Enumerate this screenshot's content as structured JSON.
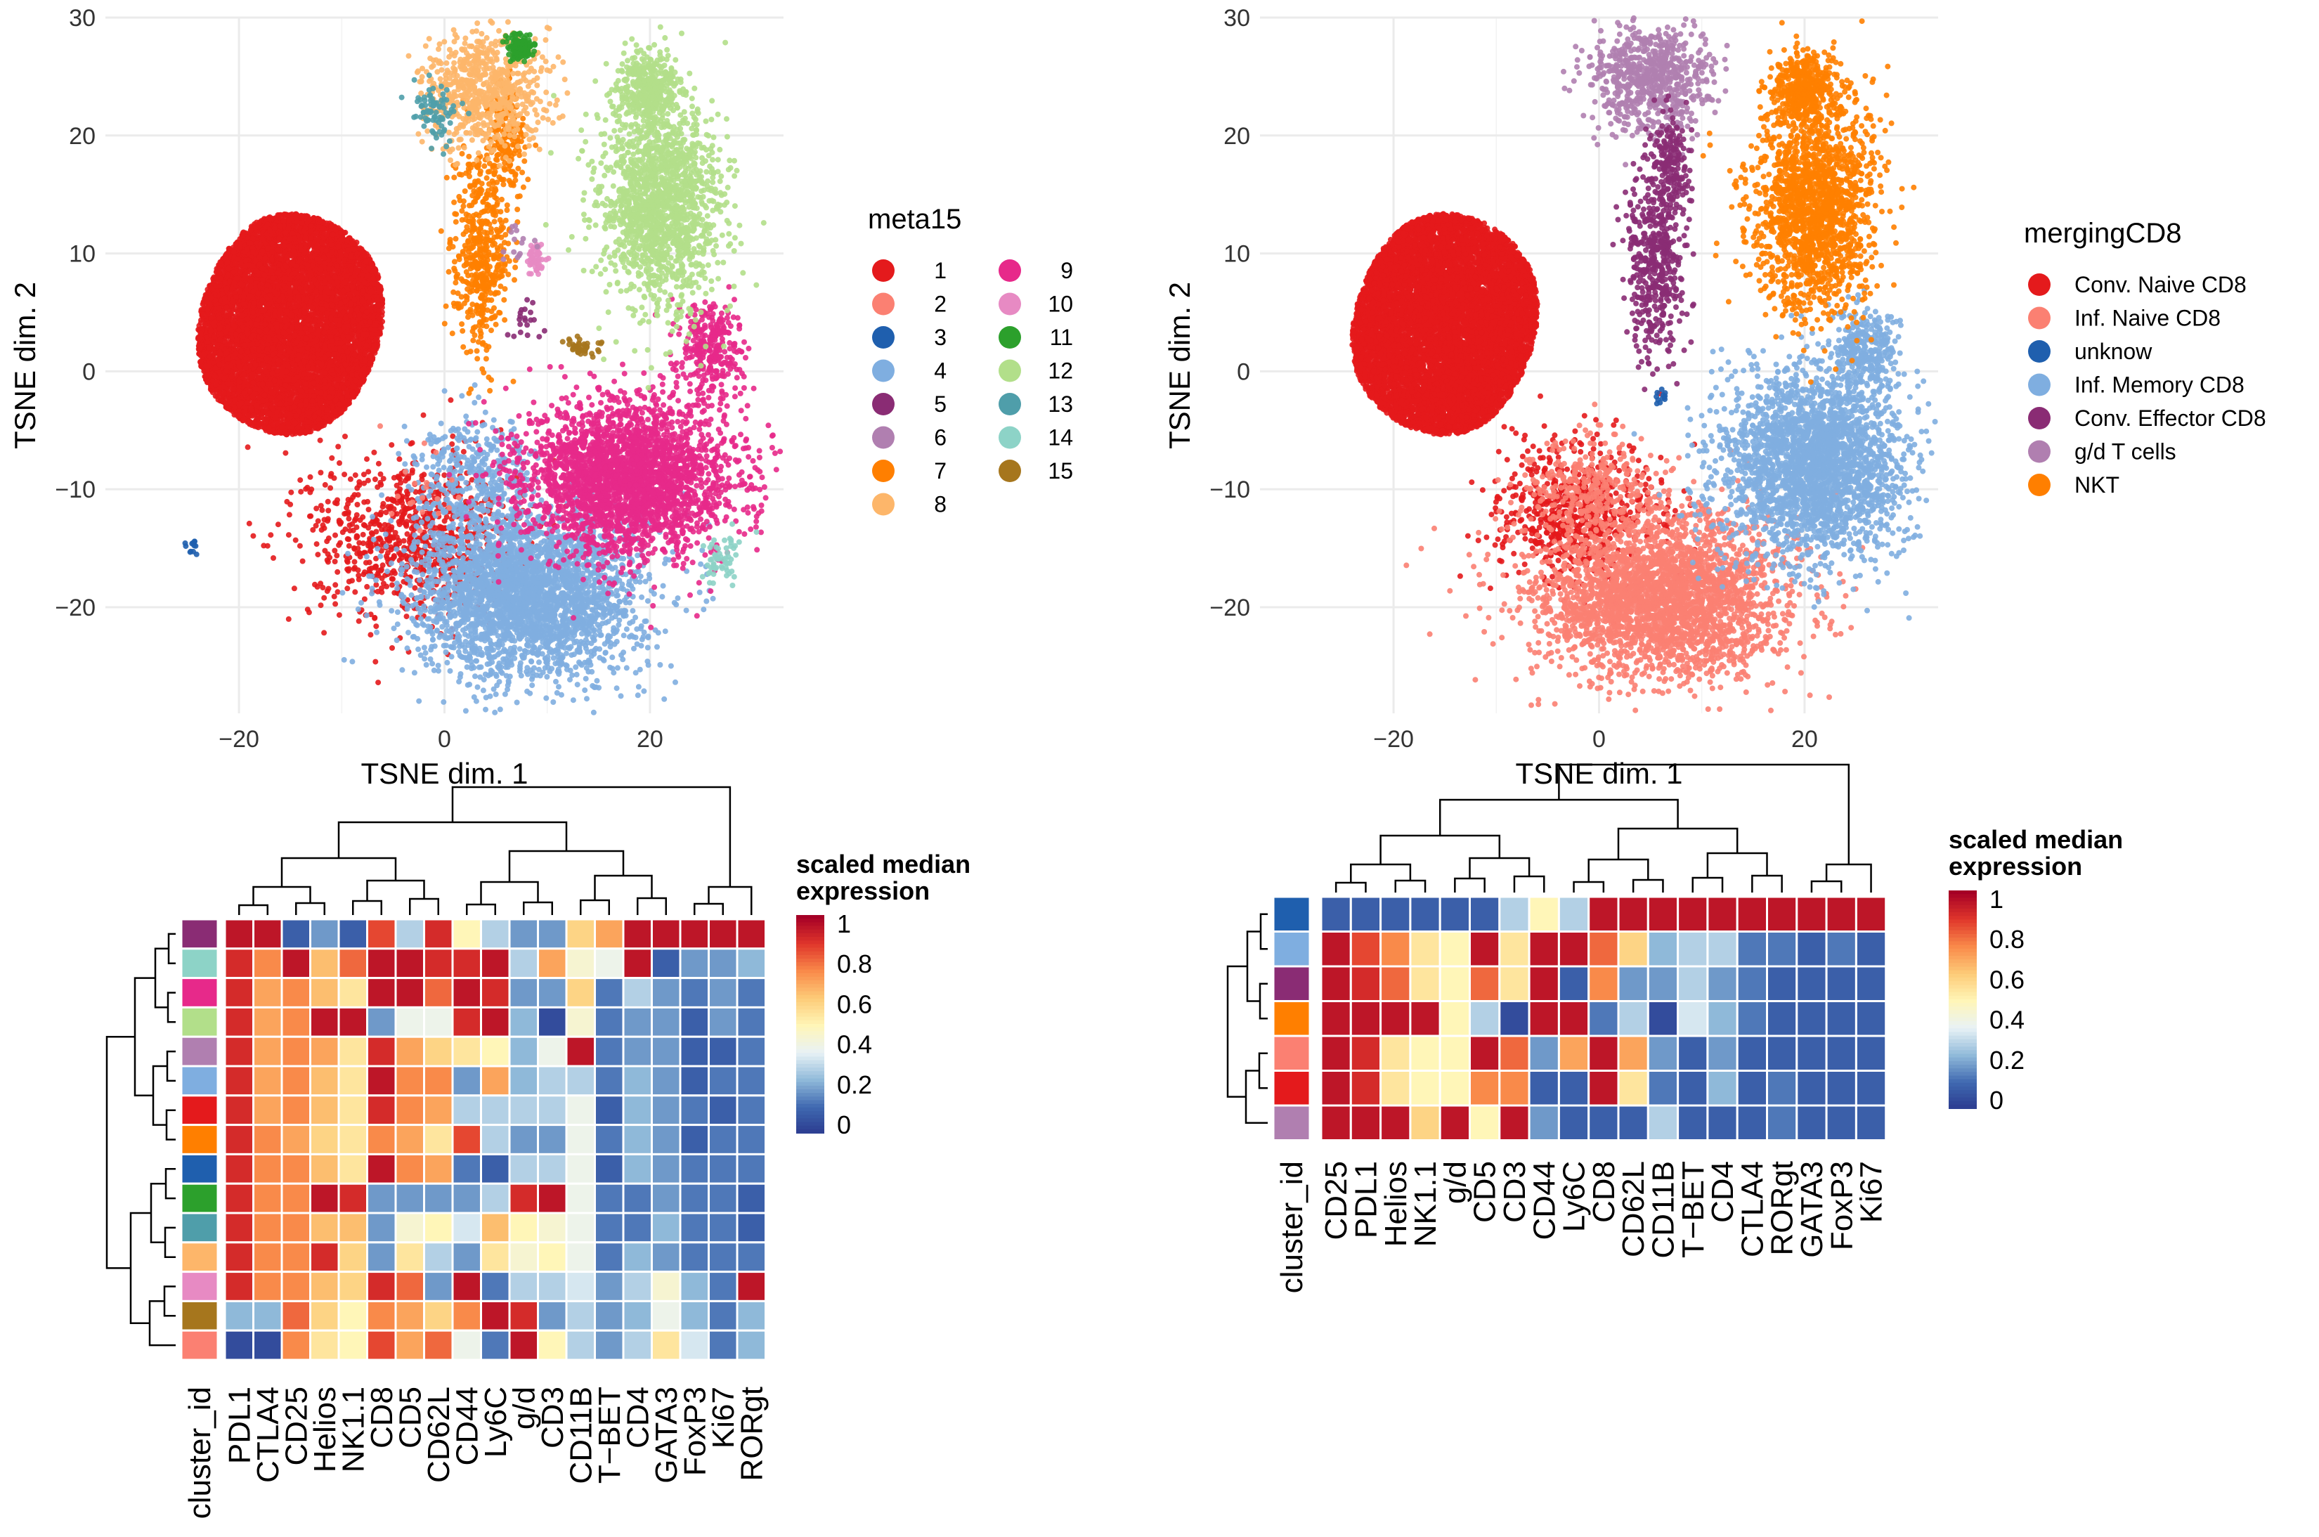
{
  "palette": {
    "1": "#E41A1C",
    "2": "#FB8072",
    "3": "#1F5FAE",
    "4": "#7FAEE0",
    "5": "#8A2C74",
    "6": "#B07FB0",
    "7": "#FF7F00",
    "8": "#FDB66A",
    "9": "#E7298A",
    "10": "#E78AC3",
    "11": "#2CA02C",
    "12": "#B2DF8A",
    "13": "#4F9EAA",
    "14": "#8DD3C7",
    "15": "#A6761D"
  },
  "heat_colors": [
    "#2B3A8E",
    "#3F68B0",
    "#8FB9D9",
    "#E8F2F6",
    "#FFF6B8",
    "#FDCB78",
    "#F98A4A",
    "#E0362B",
    "#A50026"
  ],
  "chart_data": [
    {
      "type": "scatter",
      "name": "tsne-meta15",
      "xlabel": "TSNE dim. 1",
      "ylabel": "TSNE dim. 2",
      "xlim": [
        -33,
        33
      ],
      "ylim": [
        -29,
        30
      ],
      "xticks": [
        "−20",
        "0",
        "20"
      ],
      "xtick_values": [
        -20,
        0,
        20
      ],
      "yticks": [
        "−20",
        "−10",
        "0",
        "10",
        "20",
        "30"
      ],
      "ytick_values": [
        -20,
        -10,
        0,
        10,
        20,
        30
      ],
      "legend_title": "meta15",
      "legend": [
        "1",
        "2",
        "3",
        "4",
        "5",
        "6",
        "7",
        "8",
        "9",
        "10",
        "11",
        "12",
        "13",
        "14",
        "15"
      ],
      "legend_keys": [
        "1",
        "2",
        "3",
        "4",
        "5",
        "6",
        "7",
        "8",
        "9",
        "10",
        "11",
        "12",
        "13",
        "14",
        "15"
      ],
      "clusters": [
        {
          "key": "1",
          "n": 9000,
          "cx": -15,
          "cy": 4,
          "sx": 8.5,
          "sy": 8.5,
          "shape": "disk"
        },
        {
          "key": "1",
          "n": 900,
          "cx": -3,
          "cy": -14,
          "sx": 5,
          "sy": 3.5,
          "shape": "gauss"
        },
        {
          "key": "4",
          "n": 3000,
          "cx": 8,
          "cy": -19,
          "sx": 5.5,
          "sy": 3.5,
          "shape": "gauss"
        },
        {
          "key": "4",
          "n": 400,
          "cx": 3,
          "cy": -9,
          "sx": 3,
          "sy": 2.5,
          "shape": "gauss"
        },
        {
          "key": "9",
          "n": 2800,
          "cx": 18,
          "cy": -9,
          "sx": 5,
          "sy": 3.2,
          "shape": "gauss"
        },
        {
          "key": "9",
          "n": 300,
          "cx": 26,
          "cy": 2,
          "sx": 1.5,
          "sy": 2,
          "shape": "gauss"
        },
        {
          "key": "12",
          "n": 1600,
          "cx": 21,
          "cy": 14,
          "sx": 3,
          "sy": 4.5,
          "shape": "gauss"
        },
        {
          "key": "12",
          "n": 400,
          "cx": 20,
          "cy": 24,
          "sx": 1.5,
          "sy": 1.5,
          "shape": "gauss"
        },
        {
          "key": "7",
          "n": 500,
          "cx": 3.5,
          "cy": 10,
          "sx": 1.3,
          "sy": 4,
          "shape": "gauss"
        },
        {
          "key": "7",
          "n": 200,
          "cx": 6,
          "cy": 20,
          "sx": 1,
          "sy": 2.5,
          "shape": "gauss"
        },
        {
          "key": "8",
          "n": 700,
          "cx": 4,
          "cy": 24,
          "sx": 3,
          "sy": 2.5,
          "shape": "gauss"
        },
        {
          "key": "11",
          "n": 160,
          "cx": 7.5,
          "cy": 27.5,
          "sx": 0.6,
          "sy": 0.5,
          "shape": "gauss"
        },
        {
          "key": "13",
          "n": 80,
          "cx": -1,
          "cy": 22,
          "sx": 1.2,
          "sy": 1.2,
          "shape": "gauss"
        },
        {
          "key": "14",
          "n": 60,
          "cx": 27,
          "cy": -16,
          "sx": 1,
          "sy": 1,
          "shape": "gauss"
        },
        {
          "key": "10",
          "n": 50,
          "cx": 9,
          "cy": 9.5,
          "sx": 0.4,
          "sy": 0.6,
          "shape": "gauss"
        },
        {
          "key": "15",
          "n": 40,
          "cx": 13,
          "cy": 2,
          "sx": 1,
          "sy": 0.4,
          "shape": "gauss"
        },
        {
          "key": "3",
          "n": 12,
          "cx": -24.5,
          "cy": -15,
          "sx": 0.3,
          "sy": 0.3,
          "shape": "gauss"
        },
        {
          "key": "5",
          "n": 20,
          "cx": 8,
          "cy": 4,
          "sx": 1,
          "sy": 1,
          "shape": "gauss"
        },
        {
          "key": "2",
          "n": 20,
          "cx": -2,
          "cy": -10,
          "sx": 2,
          "sy": 2,
          "shape": "gauss"
        },
        {
          "key": "6",
          "n": 15,
          "cx": 7,
          "cy": 11,
          "sx": 0.8,
          "sy": 0.8,
          "shape": "gauss"
        }
      ]
    },
    {
      "type": "scatter",
      "name": "tsne-mergingCD8",
      "xlabel": "TSNE dim. 1",
      "ylabel": "TSNE dim. 2",
      "xlim": [
        -33,
        33
      ],
      "ylim": [
        -29,
        30
      ],
      "xticks": [
        "−20",
        "0",
        "20"
      ],
      "xtick_values": [
        -20,
        0,
        20
      ],
      "yticks": [
        "−20",
        "−10",
        "0",
        "10",
        "20",
        "30"
      ],
      "ytick_values": [
        -20,
        -10,
        0,
        10,
        20,
        30
      ],
      "legend_title": "mergingCD8",
      "legend": [
        "Conv. Naive CD8",
        "Inf. Naive CD8",
        "unknow",
        "Inf. Memory CD8",
        "Conv. Effector CD8",
        "g/d T cells",
        "NKT"
      ],
      "legend_keys": [
        "1",
        "2",
        "3",
        "4",
        "5",
        "6",
        "7"
      ],
      "clusters": [
        {
          "key": "1",
          "n": 9000,
          "cx": -15,
          "cy": 4,
          "sx": 8.5,
          "sy": 8.5,
          "shape": "disk"
        },
        {
          "key": "1",
          "n": 700,
          "cx": -2,
          "cy": -12,
          "sx": 4,
          "sy": 3,
          "shape": "gauss"
        },
        {
          "key": "2",
          "n": 3000,
          "cx": 6,
          "cy": -19,
          "sx": 6,
          "sy": 3.5,
          "shape": "gauss"
        },
        {
          "key": "2",
          "n": 300,
          "cx": -1,
          "cy": -10,
          "sx": 3,
          "sy": 2,
          "shape": "gauss"
        },
        {
          "key": "4",
          "n": 2600,
          "cx": 21,
          "cy": -8,
          "sx": 4.5,
          "sy": 4,
          "shape": "gauss"
        },
        {
          "key": "4",
          "n": 300,
          "cx": 26,
          "cy": 2,
          "sx": 1.5,
          "sy": 1.8,
          "shape": "gauss"
        },
        {
          "key": "7",
          "n": 1700,
          "cx": 21,
          "cy": 14,
          "sx": 3,
          "sy": 4.5,
          "shape": "gauss"
        },
        {
          "key": "7",
          "n": 450,
          "cx": 20,
          "cy": 24,
          "sx": 1.5,
          "sy": 1.5,
          "shape": "gauss"
        },
        {
          "key": "6",
          "n": 700,
          "cx": 5,
          "cy": 25,
          "sx": 3,
          "sy": 2.2,
          "shape": "gauss"
        },
        {
          "key": "5",
          "n": 500,
          "cx": 5.5,
          "cy": 10,
          "sx": 1.3,
          "sy": 4,
          "shape": "gauss"
        },
        {
          "key": "5",
          "n": 150,
          "cx": 7,
          "cy": 18,
          "sx": 1,
          "sy": 2,
          "shape": "gauss"
        },
        {
          "key": "3",
          "n": 12,
          "cx": 6,
          "cy": -2,
          "sx": 0.3,
          "sy": 0.3,
          "shape": "gauss"
        }
      ]
    },
    {
      "type": "heatmap",
      "name": "heatmap-meta15",
      "legend_title": [
        "scaled median",
        "expression"
      ],
      "legend_ticks": [
        "1",
        "0.8",
        "0.6",
        "0.4",
        "0.2",
        "0"
      ],
      "row_label": "cluster_id",
      "columns": [
        "PDL1",
        "CTLA4",
        "CD25",
        "Helios",
        "NK1.1",
        "CD8",
        "CD5",
        "CD62L",
        "CD44",
        "Ly6C",
        "g/d",
        "CD3",
        "CD11B",
        "T−BET",
        "CD4",
        "GATA3",
        "FoxP3",
        "Ki67",
        "RORgt"
      ],
      "row_keys": [
        "5",
        "14",
        "9",
        "12",
        "6",
        "4",
        "1",
        "7",
        "3",
        "11",
        "13",
        "8",
        "10",
        "15",
        "2"
      ],
      "values": [
        [
          0.95,
          0.95,
          0.1,
          0.2,
          0.1,
          0.85,
          0.3,
          0.9,
          0.5,
          0.3,
          0.2,
          0.2,
          0.6,
          0.7,
          0.95,
          0.95,
          0.95,
          0.95,
          0.95
        ],
        [
          0.9,
          0.75,
          0.95,
          0.65,
          0.8,
          0.95,
          0.95,
          0.9,
          0.9,
          0.95,
          0.3,
          0.7,
          0.45,
          0.4,
          0.95,
          0.1,
          0.2,
          0.2,
          0.25
        ],
        [
          0.9,
          0.7,
          0.75,
          0.65,
          0.55,
          0.95,
          0.95,
          0.8,
          0.95,
          0.9,
          0.2,
          0.2,
          0.6,
          0.15,
          0.3,
          0.2,
          0.15,
          0.2,
          0.15
        ],
        [
          0.9,
          0.7,
          0.75,
          0.95,
          0.95,
          0.2,
          0.4,
          0.4,
          0.9,
          0.95,
          0.25,
          0.05,
          0.45,
          0.15,
          0.2,
          0.2,
          0.1,
          0.2,
          0.15
        ],
        [
          0.9,
          0.7,
          0.75,
          0.7,
          0.55,
          0.9,
          0.7,
          0.6,
          0.55,
          0.5,
          0.25,
          0.4,
          0.95,
          0.15,
          0.2,
          0.2,
          0.1,
          0.1,
          0.15
        ],
        [
          0.9,
          0.7,
          0.75,
          0.65,
          0.55,
          0.95,
          0.75,
          0.75,
          0.2,
          0.7,
          0.25,
          0.3,
          0.3,
          0.15,
          0.25,
          0.2,
          0.1,
          0.15,
          0.15
        ],
        [
          0.9,
          0.7,
          0.75,
          0.65,
          0.55,
          0.9,
          0.75,
          0.7,
          0.3,
          0.3,
          0.3,
          0.3,
          0.4,
          0.1,
          0.25,
          0.2,
          0.15,
          0.1,
          0.15
        ],
        [
          0.9,
          0.75,
          0.7,
          0.6,
          0.55,
          0.75,
          0.7,
          0.55,
          0.85,
          0.3,
          0.2,
          0.2,
          0.4,
          0.15,
          0.25,
          0.2,
          0.1,
          0.15,
          0.15
        ],
        [
          0.9,
          0.75,
          0.75,
          0.65,
          0.55,
          0.95,
          0.75,
          0.7,
          0.15,
          0.1,
          0.3,
          0.3,
          0.4,
          0.1,
          0.25,
          0.2,
          0.15,
          0.15,
          0.15
        ],
        [
          0.9,
          0.75,
          0.75,
          0.95,
          0.9,
          0.2,
          0.2,
          0.2,
          0.2,
          0.3,
          0.9,
          0.95,
          0.4,
          0.15,
          0.15,
          0.2,
          0.15,
          0.15,
          0.1
        ],
        [
          0.9,
          0.75,
          0.75,
          0.65,
          0.65,
          0.2,
          0.45,
          0.5,
          0.35,
          0.65,
          0.5,
          0.45,
          0.4,
          0.15,
          0.15,
          0.25,
          0.15,
          0.15,
          0.1
        ],
        [
          0.9,
          0.75,
          0.75,
          0.9,
          0.6,
          0.2,
          0.55,
          0.3,
          0.2,
          0.55,
          0.45,
          0.5,
          0.4,
          0.15,
          0.25,
          0.2,
          0.15,
          0.15,
          0.15
        ],
        [
          0.9,
          0.75,
          0.75,
          0.65,
          0.6,
          0.9,
          0.8,
          0.2,
          0.95,
          0.15,
          0.3,
          0.3,
          0.35,
          0.2,
          0.3,
          0.45,
          0.25,
          0.15,
          0.95
        ],
        [
          0.25,
          0.25,
          0.8,
          0.6,
          0.5,
          0.75,
          0.7,
          0.6,
          0.75,
          0.95,
          0.9,
          0.2,
          0.3,
          0.2,
          0.25,
          0.4,
          0.25,
          0.15,
          0.25
        ],
        [
          0.05,
          0.05,
          0.75,
          0.55,
          0.5,
          0.85,
          0.7,
          0.8,
          0.4,
          0.15,
          0.95,
          0.5,
          0.3,
          0.2,
          0.3,
          0.55,
          0.35,
          0.15,
          0.25
        ]
      ],
      "col_order_note": "dendrogram above columns, dendrogram left of rows"
    },
    {
      "type": "heatmap",
      "name": "heatmap-mergingCD8",
      "legend_title": [
        "scaled median",
        "expression"
      ],
      "legend_ticks": [
        "1",
        "0.8",
        "0.6",
        "0.4",
        "0.2",
        "0"
      ],
      "row_label": "cluster_id",
      "columns": [
        "CD25",
        "PDL1",
        "Helios",
        "NK1.1",
        "g/d",
        "CD5",
        "CD3",
        "CD44",
        "Ly6C",
        "CD8",
        "CD62L",
        "CD11B",
        "T−BET",
        "CD4",
        "CTLA4",
        "RORgt",
        "GATA3",
        "FoxP3",
        "Ki67"
      ],
      "row_keys": [
        "3",
        "4",
        "5",
        "7",
        "2",
        "1",
        "6"
      ],
      "values": [
        [
          0.1,
          0.1,
          0.1,
          0.1,
          0.1,
          0.1,
          0.3,
          0.5,
          0.3,
          0.95,
          0.95,
          0.95,
          0.95,
          0.95,
          0.95,
          0.95,
          0.95,
          0.95,
          0.95
        ],
        [
          0.95,
          0.85,
          0.75,
          0.55,
          0.5,
          0.95,
          0.55,
          0.95,
          0.95,
          0.8,
          0.6,
          0.25,
          0.3,
          0.3,
          0.15,
          0.15,
          0.1,
          0.15,
          0.1
        ],
        [
          0.95,
          0.9,
          0.8,
          0.55,
          0.5,
          0.8,
          0.55,
          0.95,
          0.1,
          0.75,
          0.2,
          0.2,
          0.3,
          0.2,
          0.15,
          0.1,
          0.1,
          0.1,
          0.1
        ],
        [
          0.95,
          0.95,
          0.95,
          0.95,
          0.5,
          0.3,
          0.05,
          0.95,
          0.95,
          0.15,
          0.3,
          0.05,
          0.35,
          0.25,
          0.15,
          0.1,
          0.1,
          0.1,
          0.1
        ],
        [
          0.95,
          0.9,
          0.55,
          0.5,
          0.5,
          0.95,
          0.8,
          0.2,
          0.7,
          0.95,
          0.7,
          0.2,
          0.1,
          0.2,
          0.1,
          0.1,
          0.1,
          0.1,
          0.1
        ],
        [
          0.95,
          0.9,
          0.55,
          0.5,
          0.5,
          0.75,
          0.75,
          0.1,
          0.1,
          0.95,
          0.55,
          0.15,
          0.1,
          0.25,
          0.1,
          0.15,
          0.1,
          0.1,
          0.1
        ],
        [
          0.95,
          0.95,
          0.95,
          0.6,
          0.95,
          0.5,
          0.95,
          0.2,
          0.1,
          0.1,
          0.1,
          0.3,
          0.1,
          0.1,
          0.1,
          0.15,
          0.1,
          0.1,
          0.1
        ]
      ]
    }
  ]
}
